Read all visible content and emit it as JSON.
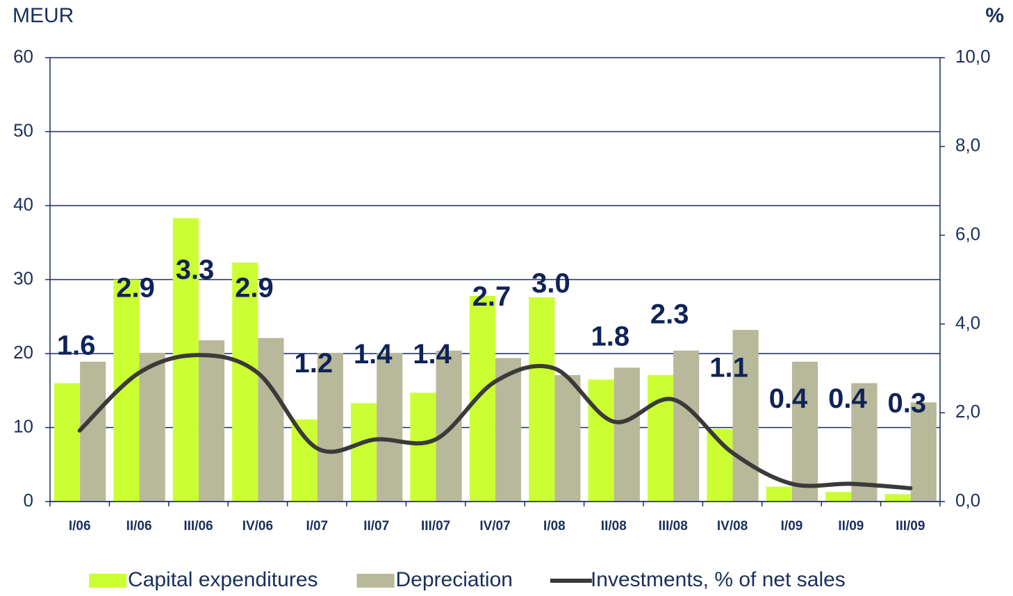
{
  "chart_data": {
    "type": "bar_line",
    "y_axis_label": "MEUR",
    "y2_axis_label": "%",
    "categories": [
      "I/06",
      "II/06",
      "III/06",
      "IV/06",
      "I/07",
      "II/07",
      "III/07",
      "IV/07",
      "I/08",
      "II/08",
      "III/08",
      "IV/08",
      "I/09",
      "II/09",
      "III/09"
    ],
    "series": [
      {
        "name": "Capital expenditures",
        "color": "#ccff33",
        "type": "bar",
        "values": [
          16,
          30,
          38.3,
          32.3,
          11.1,
          13.3,
          14.7,
          27.8,
          27.6,
          16.5,
          17.1,
          9.8,
          2,
          1.3,
          1
        ]
      },
      {
        "name": "Depreciation",
        "color": "#b8b89a",
        "type": "bar",
        "values": [
          18.9,
          20.1,
          21.8,
          22.1,
          20.1,
          20.1,
          20.4,
          19.4,
          17.1,
          18.1,
          20.4,
          23.2,
          18.9,
          16,
          13.4
        ]
      },
      {
        "name": "Investments, % of net sales",
        "color": "#3a3a3a",
        "type": "line",
        "axis": "y2",
        "values": [
          1.6,
          2.9,
          3.3,
          2.9,
          1.2,
          1.4,
          1.4,
          2.7,
          3.0,
          1.8,
          2.3,
          1.1,
          0.4,
          0.4,
          0.3
        ],
        "value_labels": [
          "1.6",
          "2.9",
          "3.3",
          "2.9",
          "1.2",
          "1.4",
          "1.4",
          "2.7",
          "3.0",
          "1.8",
          "2.3",
          "1.1",
          "0.4",
          "0.4",
          "0.3"
        ]
      }
    ],
    "ylim": [
      0,
      60
    ],
    "yticks": [
      0,
      10,
      20,
      30,
      40,
      50,
      60
    ],
    "y2lim": [
      0,
      10
    ],
    "y2ticks": [
      {
        "value": 0,
        "label": "0,0"
      },
      {
        "value": 2,
        "label": "2,0"
      },
      {
        "value": 4,
        "label": "4,0"
      },
      {
        "value": 6,
        "label": "6,0"
      },
      {
        "value": 8,
        "label": "8,0"
      },
      {
        "value": 10,
        "label": "10,0"
      }
    ],
    "grid": true,
    "legend": "bottom"
  }
}
